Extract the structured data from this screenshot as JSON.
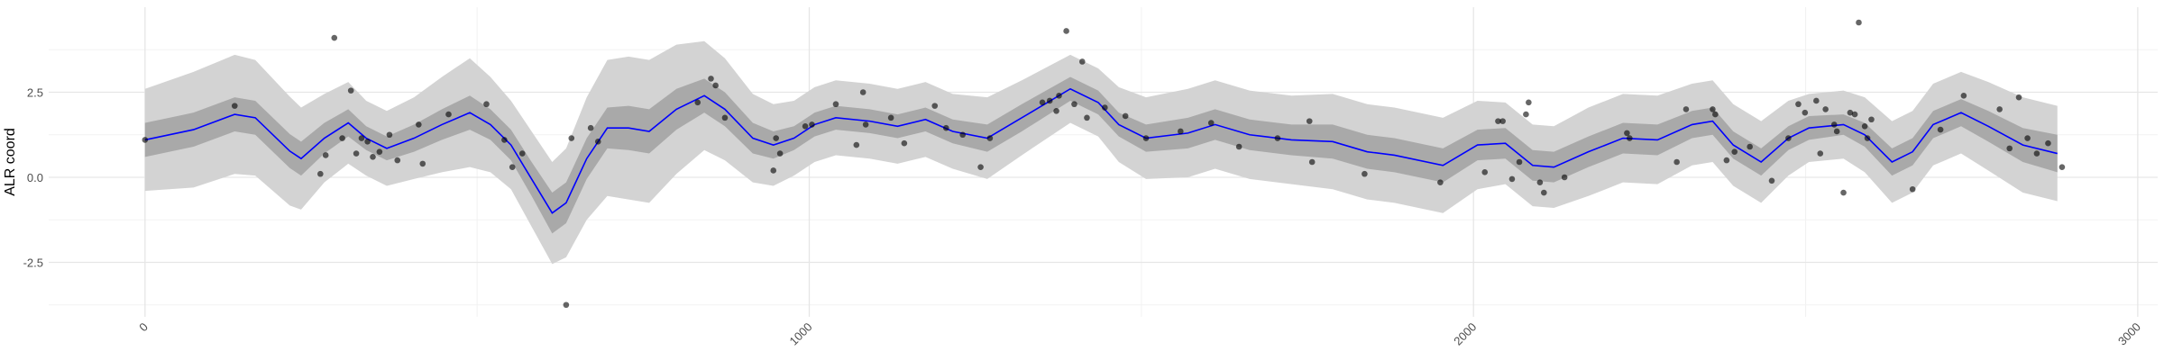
{
  "chart_data": {
    "type": "line",
    "y_label": "ALR coord",
    "xlim": [
      -145,
      3030
    ],
    "ylim": [
      -4.1,
      5.0
    ],
    "xticks": [
      0,
      1000,
      2000,
      3000
    ],
    "yticks": [
      -2.5,
      {
        "value": 0,
        "label": "0.0"
      },
      2.5
    ],
    "minor_xticks": [
      500,
      1500,
      2500
    ],
    "minor_yticks": [
      -3.75,
      -1.25,
      1.25,
      3.75
    ],
    "grid": true,
    "x": [
      0,
      73,
      135,
      166,
      218,
      235,
      270,
      306,
      333,
      364,
      405,
      447,
      489,
      520,
      551,
      582,
      613,
      634,
      665,
      696,
      728,
      759,
      800,
      842,
      873,
      915,
      946,
      977,
      1008,
      1040,
      1091,
      1133,
      1175,
      1216,
      1268,
      1320,
      1393,
      1435,
      1466,
      1507,
      1570,
      1611,
      1663,
      1726,
      1788,
      1840,
      1881,
      1954,
      2006,
      2048,
      2089,
      2121,
      2173,
      2225,
      2277,
      2329,
      2360,
      2391,
      2433,
      2474,
      2505,
      2557,
      2589,
      2630,
      2661,
      2692,
      2734,
      2775,
      2827,
      2879
    ],
    "bands": [
      {
        "color": "#d3d3d3",
        "upper": [
          2.6,
          3.1,
          3.6,
          3.45,
          2.37,
          2.05,
          2.45,
          2.8,
          2.25,
          1.95,
          2.35,
          2.95,
          3.5,
          2.95,
          2.25,
          1.35,
          0.45,
          0.85,
          2.35,
          3.45,
          3.55,
          3.45,
          3.9,
          4.0,
          3.5,
          2.45,
          2.15,
          2.25,
          2.65,
          2.85,
          2.75,
          2.6,
          2.8,
          2.45,
          2.35,
          2.85,
          3.6,
          3.2,
          2.65,
          2.35,
          2.6,
          2.85,
          2.55,
          2.4,
          2.45,
          2.15,
          2.05,
          1.75,
          2.25,
          2.2,
          1.55,
          1.5,
          2.05,
          2.45,
          2.4,
          2.75,
          2.85,
          2.15,
          1.65,
          2.25,
          2.45,
          2.55,
          2.35,
          1.65,
          1.95,
          2.75,
          3.1,
          2.8,
          2.35,
          2.1
        ],
        "lower": [
          -0.4,
          -0.3,
          0.1,
          0.05,
          -0.83,
          -0.95,
          -0.15,
          0.4,
          0.05,
          -0.25,
          -0.05,
          0.15,
          0.3,
          0.15,
          -0.35,
          -1.45,
          -2.55,
          -2.35,
          -1.25,
          -0.55,
          -0.65,
          -0.75,
          0.1,
          0.8,
          0.5,
          -0.15,
          -0.25,
          0.05,
          0.45,
          0.65,
          0.55,
          0.4,
          0.6,
          0.25,
          -0.05,
          0.65,
          1.6,
          1.2,
          0.45,
          -0.05,
          0.0,
          0.25,
          -0.05,
          -0.2,
          -0.35,
          -0.65,
          -0.75,
          -1.05,
          -0.35,
          -0.2,
          -0.85,
          -0.9,
          -0.55,
          -0.15,
          -0.2,
          0.35,
          0.45,
          -0.25,
          -0.75,
          0.05,
          0.45,
          0.55,
          0.15,
          -0.75,
          -0.45,
          0.35,
          0.7,
          0.2,
          -0.45,
          -0.7
        ]
      },
      {
        "color": "#a9a9a9",
        "upper": [
          1.6,
          1.9,
          2.35,
          2.25,
          1.27,
          1.05,
          1.6,
          2.0,
          1.5,
          1.2,
          1.55,
          2.0,
          2.4,
          2.0,
          1.4,
          0.45,
          -0.45,
          -0.15,
          1.15,
          2.05,
          2.1,
          2.0,
          2.6,
          2.9,
          2.5,
          1.6,
          1.35,
          1.5,
          1.9,
          2.1,
          2.0,
          1.85,
          2.05,
          1.7,
          1.55,
          2.15,
          2.95,
          2.55,
          1.9,
          1.55,
          1.75,
          2.0,
          1.7,
          1.55,
          1.55,
          1.25,
          1.15,
          0.85,
          1.4,
          1.45,
          0.8,
          0.75,
          1.2,
          1.6,
          1.55,
          1.95,
          2.05,
          1.35,
          0.85,
          1.5,
          1.8,
          1.85,
          1.6,
          0.85,
          1.15,
          1.95,
          2.3,
          1.95,
          1.45,
          1.25
        ],
        "lower": [
          0.6,
          0.9,
          1.35,
          1.25,
          0.27,
          0.05,
          0.7,
          1.2,
          0.8,
          0.5,
          0.75,
          1.1,
          1.4,
          1.1,
          0.5,
          -0.55,
          -1.65,
          -1.35,
          -0.05,
          0.85,
          0.8,
          0.7,
          1.4,
          1.9,
          1.5,
          0.7,
          0.55,
          0.8,
          1.2,
          1.4,
          1.3,
          1.15,
          1.35,
          1.0,
          0.75,
          1.35,
          2.25,
          1.85,
          1.2,
          0.75,
          0.85,
          1.1,
          0.8,
          0.65,
          0.55,
          0.25,
          0.15,
          -0.15,
          0.5,
          0.55,
          -0.1,
          -0.15,
          0.3,
          0.7,
          0.65,
          1.15,
          1.25,
          0.55,
          0.05,
          0.8,
          1.1,
          1.25,
          0.9,
          0.05,
          0.35,
          1.15,
          1.5,
          1.05,
          0.45,
          0.15
        ]
      }
    ],
    "series": [
      {
        "color": "#0000ff",
        "values": [
          1.1,
          1.4,
          1.85,
          1.75,
          0.77,
          0.55,
          1.15,
          1.6,
          1.15,
          0.85,
          1.15,
          1.55,
          1.9,
          1.55,
          0.95,
          -0.05,
          -1.05,
          -0.75,
          0.55,
          1.45,
          1.45,
          1.35,
          2.0,
          2.4,
          2.0,
          1.15,
          0.95,
          1.15,
          1.55,
          1.75,
          1.65,
          1.5,
          1.7,
          1.35,
          1.15,
          1.75,
          2.6,
          2.2,
          1.55,
          1.15,
          1.3,
          1.55,
          1.25,
          1.1,
          1.05,
          0.75,
          0.65,
          0.35,
          0.95,
          1.0,
          0.35,
          0.3,
          0.75,
          1.15,
          1.1,
          1.55,
          1.65,
          0.95,
          0.45,
          1.15,
          1.45,
          1.55,
          1.25,
          0.45,
          0.75,
          1.55,
          1.9,
          1.5,
          0.95,
          0.7
        ]
      }
    ],
    "points": {
      "color": "#000000",
      "x": [
        0,
        135,
        264,
        272,
        285,
        297,
        310,
        318,
        326,
        335,
        343,
        353,
        368,
        380,
        412,
        418,
        457,
        514,
        541,
        553,
        568,
        634,
        642,
        671,
        682,
        832,
        852,
        859,
        873,
        946,
        950,
        956,
        994,
        1004,
        1040,
        1071,
        1081,
        1085,
        1123,
        1143,
        1189,
        1206,
        1231,
        1258,
        1272,
        1351,
        1362,
        1372,
        1376,
        1387,
        1399,
        1411,
        1418,
        1445,
        1476,
        1507,
        1559,
        1605,
        1647,
        1705,
        1753,
        1757,
        1836,
        1950,
        2017,
        2037,
        2044,
        2058,
        2069,
        2079,
        2083,
        2100,
        2106,
        2137,
        2231,
        2235,
        2306,
        2320,
        2360,
        2364,
        2381,
        2393,
        2416,
        2449,
        2474,
        2489,
        2499,
        2516,
        2522,
        2530,
        2543,
        2547,
        2557,
        2567,
        2574,
        2580,
        2589,
        2593,
        2599,
        2661,
        2703,
        2738,
        2792,
        2807,
        2821,
        2834,
        2848,
        2865,
        2886
      ],
      "y": [
        1.1,
        2.1,
        0.1,
        0.65,
        4.1,
        1.15,
        2.55,
        0.7,
        1.15,
        1.05,
        0.6,
        0.75,
        1.25,
        0.5,
        1.55,
        0.4,
        1.85,
        2.15,
        1.1,
        0.3,
        0.7,
        -3.75,
        1.15,
        1.45,
        1.05,
        2.2,
        2.9,
        2.7,
        1.75,
        0.2,
        1.15,
        0.7,
        1.5,
        1.55,
        2.15,
        0.95,
        2.5,
        1.55,
        1.75,
        1.0,
        2.1,
        1.45,
        1.25,
        0.3,
        1.15,
        2.2,
        2.25,
        1.95,
        2.4,
        4.3,
        2.15,
        3.4,
        1.75,
        2.05,
        1.8,
        1.15,
        1.35,
        1.6,
        0.9,
        1.15,
        1.65,
        0.45,
        0.1,
        -0.15,
        0.15,
        1.65,
        1.65,
        -0.05,
        0.45,
        1.85,
        2.2,
        -0.15,
        -0.45,
        0.0,
        1.3,
        1.15,
        0.45,
        2.0,
        2.0,
        1.85,
        0.5,
        0.75,
        0.9,
        -0.1,
        1.15,
        2.15,
        1.9,
        2.25,
        0.7,
        2.0,
        1.55,
        1.35,
        -0.45,
        1.9,
        1.85,
        4.55,
        1.5,
        1.15,
        1.7,
        -0.35,
        1.4,
        2.4,
        2.0,
        0.85,
        2.35,
        1.15,
        0.7,
        1.0,
        0.3
      ]
    }
  }
}
